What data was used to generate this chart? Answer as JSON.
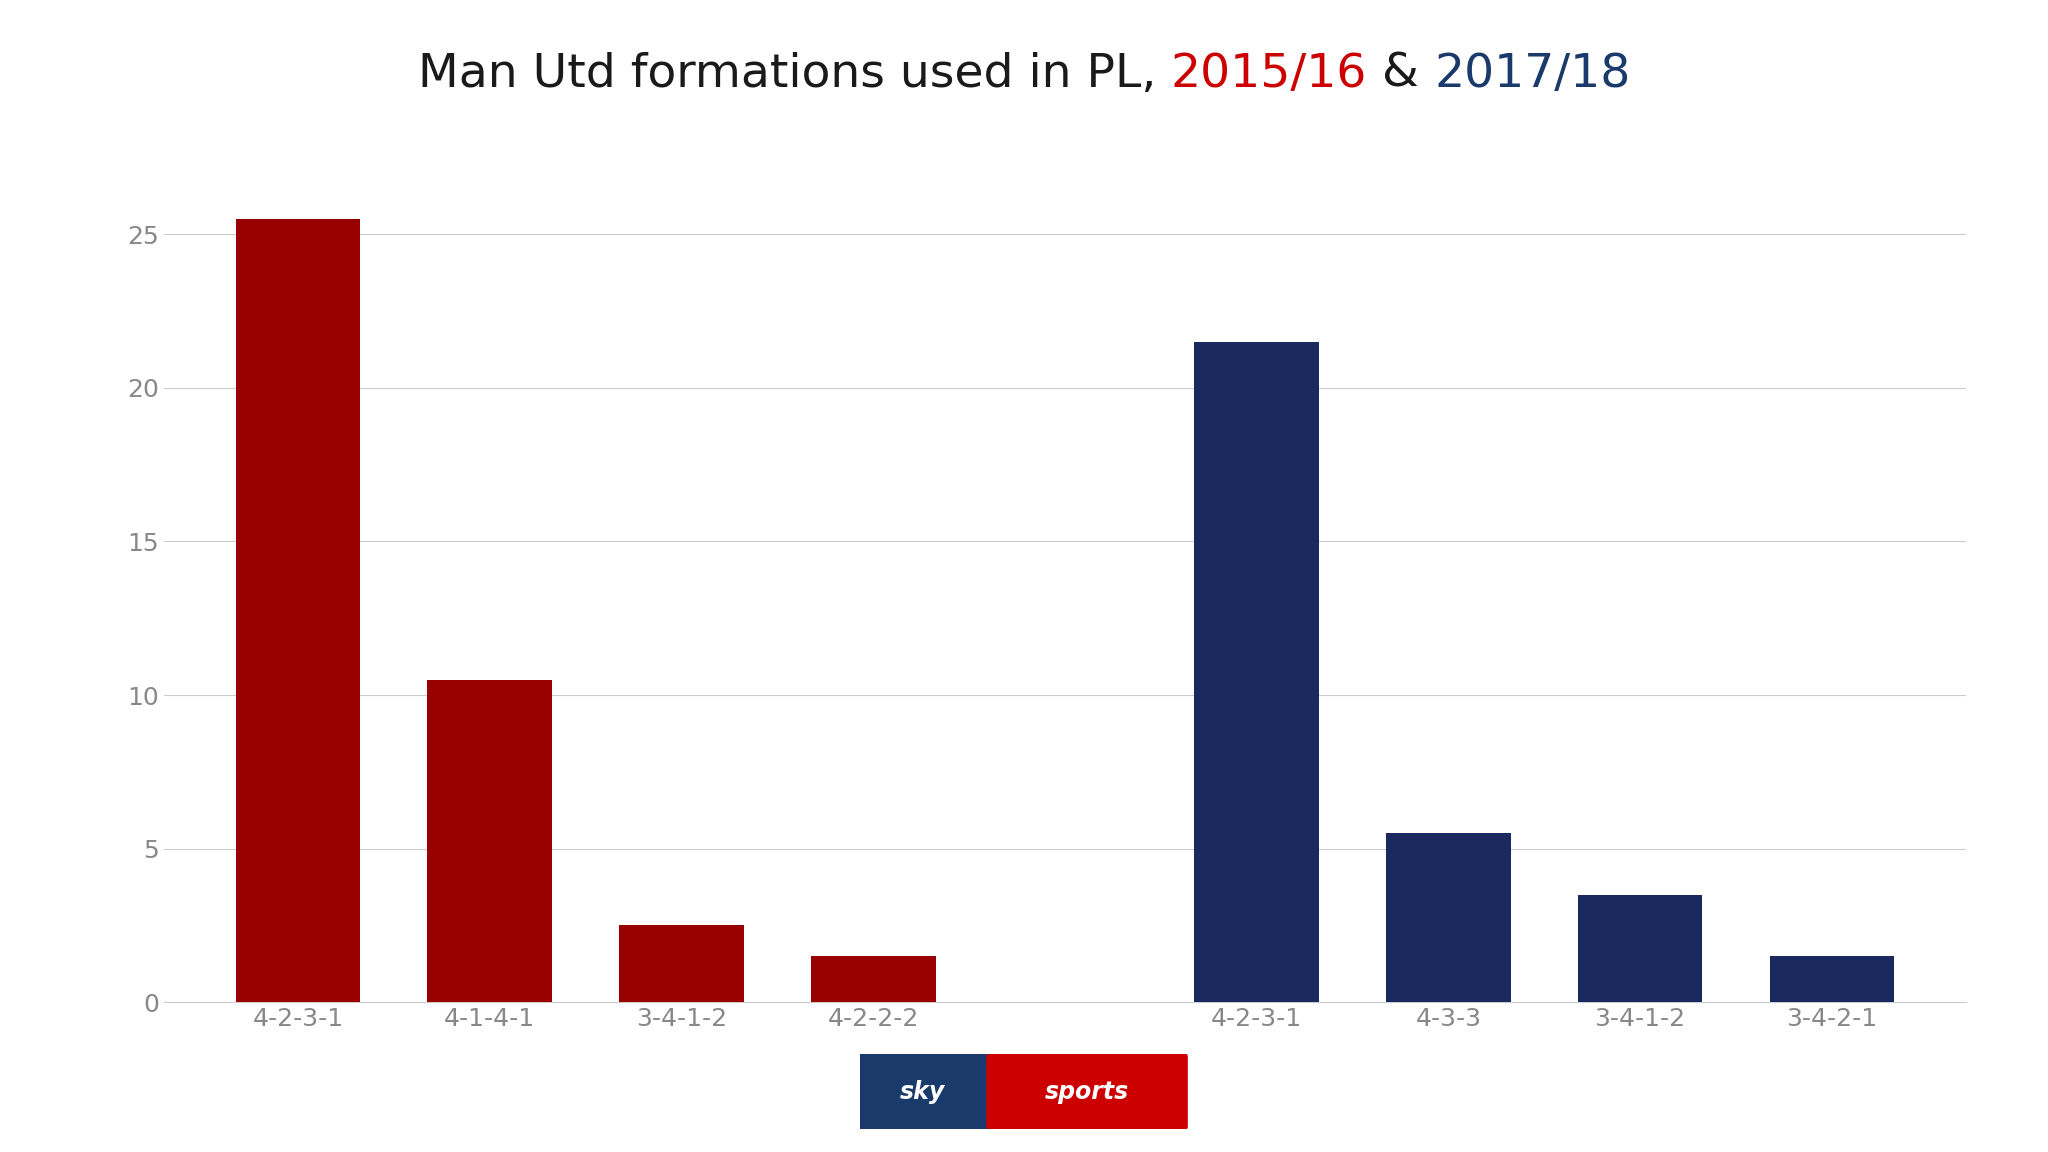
{
  "title_parts": [
    {
      "text": "Man Utd formations used in PL, ",
      "color": "#1a1a1a"
    },
    {
      "text": "2015/16",
      "color": "#cc0000"
    },
    {
      "text": " & ",
      "color": "#1a1a1a"
    },
    {
      "text": "2017/18",
      "color": "#1a3a6b"
    }
  ],
  "red_labels": [
    "4-2-3-1",
    "4-1-4-1",
    "3-4-1-2",
    "4-2-2-2"
  ],
  "red_values": [
    25.5,
    10.5,
    2.5,
    1.5
  ],
  "navy_labels": [
    "4-2-3-1",
    "4-3-3",
    "3-4-1-2",
    "3-4-2-1"
  ],
  "navy_values": [
    21.5,
    5.5,
    3.5,
    1.5
  ],
  "red_color": "#990000",
  "navy_color": "#1a2a5e",
  "yticks": [
    0,
    5,
    10,
    15,
    20,
    25
  ],
  "ylim": [
    0,
    27
  ],
  "background_color": "#ffffff",
  "tick_label_color": "#888888",
  "grid_color": "#cccccc",
  "title_fontsize": 34,
  "axis_fontsize": 18
}
